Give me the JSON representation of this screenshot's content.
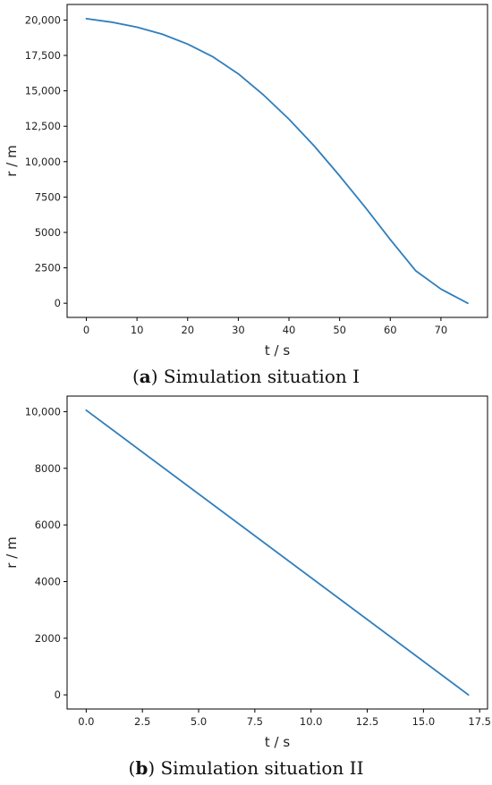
{
  "chart_data": [
    {
      "type": "line",
      "caption": {
        "open": "(",
        "letter": "a",
        "text": ") Simulation situation I"
      },
      "xlabel": "t / s",
      "ylabel": "r / m",
      "xlim": [
        -3.8,
        79.2
      ],
      "ylim": [
        -1000,
        21100
      ],
      "xticks": [
        0,
        10,
        20,
        30,
        40,
        50,
        60,
        70
      ],
      "xtick_labels": [
        "0",
        "10",
        "20",
        "30",
        "40",
        "50",
        "60",
        "70"
      ],
      "yticks": [
        0,
        2500,
        5000,
        7500,
        10000,
        12500,
        15000,
        17500,
        20000
      ],
      "ytick_labels": [
        "0",
        "2500",
        "5000",
        "7500",
        "10,000",
        "12,500",
        "15,000",
        "17,500",
        "20,000"
      ],
      "grid": false,
      "color": "#2f7ebc",
      "series": [
        {
          "x": [
            0,
            5,
            10,
            15,
            20,
            25,
            30,
            35,
            40,
            45,
            50,
            55,
            60,
            65,
            70,
            75.3
          ],
          "y": [
            20100,
            19850,
            19500,
            19000,
            18300,
            17400,
            16200,
            14700,
            13000,
            11100,
            9000,
            6800,
            4500,
            2300,
            1000,
            0
          ]
        }
      ]
    },
    {
      "type": "line",
      "caption": {
        "open": "(",
        "letter": "b",
        "text": ") Simulation situation II"
      },
      "xlabel": "t / s",
      "ylabel": "r / m",
      "xlim": [
        -0.85,
        17.85
      ],
      "ylim": [
        -500,
        10550
      ],
      "xticks": [
        0,
        2.5,
        5,
        7.5,
        10,
        12.5,
        15,
        17.5
      ],
      "xtick_labels": [
        "0.0",
        "2.5",
        "5.0",
        "7.5",
        "10.0",
        "12.5",
        "15.0",
        "17.5"
      ],
      "yticks": [
        0,
        2000,
        4000,
        6000,
        8000,
        10000
      ],
      "ytick_labels": [
        "0",
        "2000",
        "4000",
        "6000",
        "8000",
        "10,000"
      ],
      "grid": false,
      "color": "#2f7ebc",
      "series": [
        {
          "x": [
            0,
            17
          ],
          "y": [
            10050,
            0
          ]
        }
      ]
    }
  ]
}
